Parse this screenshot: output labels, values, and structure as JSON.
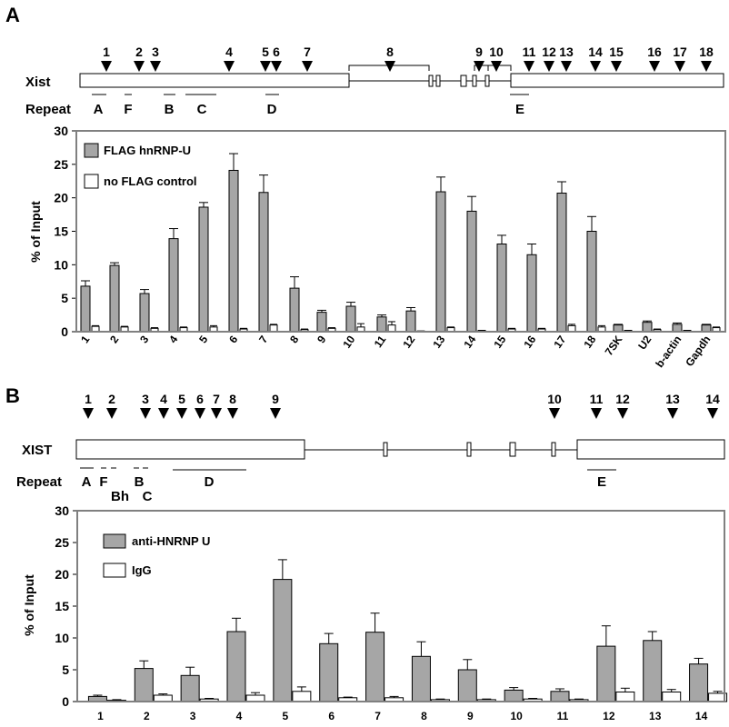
{
  "chart_data": [
    {
      "type": "bar",
      "panel": "A",
      "gene": "Xist",
      "repeat_label": "Repeat",
      "ylabel": "% of Input",
      "yticks": [
        "0",
        "5",
        "10",
        "15",
        "20",
        "25",
        "30"
      ],
      "ylim": [
        0,
        30
      ],
      "categories": [
        "1",
        "2",
        "3",
        "4",
        "5",
        "6",
        "7",
        "8",
        "9",
        "10",
        "11",
        "12",
        "13",
        "14",
        "15",
        "16",
        "17",
        "18",
        "7SK",
        "U2",
        "b-actin",
        "Gapdh"
      ],
      "probe_labels": [
        "1",
        "2",
        "3",
        "4",
        "5",
        "6",
        "7",
        "8",
        "9",
        "10",
        "11",
        "12",
        "13",
        "14",
        "15",
        "16",
        "17",
        "18"
      ],
      "repeats": [
        "A",
        "F",
        "B",
        "C",
        "D",
        "E"
      ],
      "series": [
        {
          "name": "FLAG hnRNP-U",
          "color": "#a6a6a6",
          "values": [
            6.8,
            9.9,
            5.7,
            13.9,
            18.6,
            24.1,
            20.8,
            6.5,
            2.9,
            3.8,
            2.2,
            3.1,
            20.9,
            18.0,
            13.1,
            11.5,
            20.7,
            15.0,
            1.0,
            1.4,
            1.1,
            1.0
          ],
          "errors": [
            0.8,
            0.4,
            0.6,
            1.5,
            0.7,
            2.5,
            2.6,
            1.7,
            0.3,
            0.6,
            0.3,
            0.5,
            2.2,
            2.2,
            1.3,
            1.6,
            1.7,
            2.2,
            0.1,
            0.2,
            0.2,
            0.1
          ]
        },
        {
          "name": "no FLAG control",
          "color": "#ffffff",
          "values": [
            0.8,
            0.7,
            0.5,
            0.6,
            0.7,
            0.4,
            1.0,
            0.3,
            0.5,
            0.7,
            1.0,
            0.1,
            0.6,
            0.2,
            0.4,
            0.4,
            0.9,
            0.7,
            0.2,
            0.3,
            0.2,
            0.6
          ],
          "errors": [
            0.1,
            0.1,
            0.1,
            0.1,
            0.2,
            0.1,
            0.1,
            0.1,
            0.1,
            0.5,
            0.5,
            0.0,
            0.1,
            0.0,
            0.1,
            0.1,
            0.2,
            0.2,
            0.0,
            0.1,
            0.0,
            0.1
          ]
        }
      ]
    },
    {
      "type": "bar",
      "panel": "B",
      "gene": "XIST",
      "repeat_label": "Repeat",
      "ylabel": "% of Input",
      "yticks": [
        "0",
        "5",
        "10",
        "15",
        "20",
        "25",
        "30"
      ],
      "ylim": [
        0,
        30
      ],
      "categories": [
        "1",
        "2",
        "3",
        "4",
        "5",
        "6",
        "7",
        "8",
        "9",
        "10",
        "11",
        "12",
        "13",
        "14"
      ],
      "probe_labels": [
        "1",
        "2",
        "3",
        "4",
        "5",
        "6",
        "7",
        "8",
        "9",
        "10",
        "11",
        "12",
        "13",
        "14"
      ],
      "repeats": [
        "A",
        "F",
        "Bh",
        "B",
        "C",
        "D",
        "E"
      ],
      "series": [
        {
          "name": "anti-HNRNP U",
          "color": "#a6a6a6",
          "values": [
            0.8,
            5.2,
            4.1,
            11.0,
            19.2,
            9.1,
            10.9,
            7.1,
            5.0,
            1.8,
            1.6,
            8.7,
            9.6,
            5.9
          ],
          "errors": [
            0.2,
            1.2,
            1.3,
            2.1,
            3.1,
            1.6,
            3.0,
            2.3,
            1.6,
            0.4,
            0.4,
            3.2,
            1.4,
            0.9
          ]
        },
        {
          "name": "IgG",
          "color": "#ffffff",
          "values": [
            0.2,
            1.0,
            0.4,
            1.0,
            1.6,
            0.6,
            0.6,
            0.3,
            0.3,
            0.4,
            0.3,
            1.5,
            1.5,
            1.3
          ],
          "errors": [
            0.1,
            0.2,
            0.1,
            0.4,
            0.7,
            0.1,
            0.2,
            0.1,
            0.1,
            0.1,
            0.1,
            0.6,
            0.4,
            0.3
          ]
        }
      ]
    }
  ]
}
